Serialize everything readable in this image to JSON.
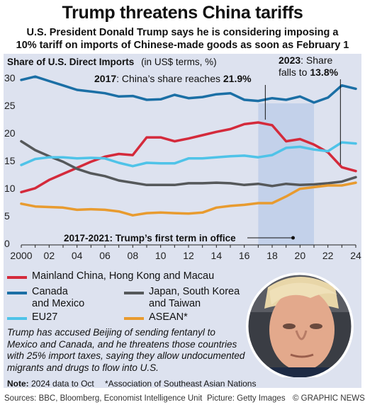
{
  "header": {
    "title": "Trump threatens China tariffs",
    "subtitle_line1": "U.S. President Donald Trump says he is considering imposing a",
    "subtitle_line2": "10% tariff on imports of Chinese-made goods as soon as February 1"
  },
  "chart_data": {
    "type": "line",
    "title": "Share of U.S. Direct Imports",
    "units": "(in US$ terms, %)",
    "x": [
      2000,
      2001,
      2002,
      2003,
      2004,
      2005,
      2006,
      2007,
      2008,
      2009,
      2010,
      2011,
      2012,
      2013,
      2014,
      2015,
      2016,
      2017,
      2018,
      2019,
      2020,
      2021,
      2022,
      2023,
      2024
    ],
    "x_tick_labels": [
      "2000",
      "02",
      "04",
      "06",
      "08",
      "10",
      "12",
      "14",
      "16",
      "18",
      "20",
      "22",
      "24"
    ],
    "y_ticks": [
      0,
      5,
      10,
      15,
      20,
      25,
      30
    ],
    "ylim": [
      0,
      31
    ],
    "grid": false,
    "series": [
      {
        "name": "Mainland China, Hong Kong and Macau",
        "color": "#d42a3b",
        "values": [
          9.3,
          10.0,
          11.5,
          12.6,
          13.7,
          14.8,
          15.7,
          16.2,
          16.0,
          19.2,
          19.2,
          18.5,
          19.0,
          19.6,
          20.2,
          20.7,
          21.6,
          21.9,
          21.4,
          18.5,
          18.9,
          17.9,
          16.5,
          13.8,
          13.1
        ]
      },
      {
        "name": "Canada and Mexico",
        "color": "#1b6fa5",
        "values": [
          29.6,
          30.2,
          29.4,
          28.6,
          27.8,
          27.5,
          27.2,
          26.6,
          26.7,
          26.0,
          26.1,
          26.9,
          26.3,
          26.5,
          27.0,
          27.2,
          26.0,
          25.8,
          26.3,
          26.0,
          26.6,
          25.5,
          26.4,
          28.6,
          28.0
        ]
      },
      {
        "name": "Japan, South Korea and Taiwan",
        "color": "#55585a",
        "values": [
          18.5,
          16.9,
          15.8,
          14.8,
          13.5,
          12.7,
          12.2,
          11.4,
          11.0,
          10.6,
          10.6,
          10.6,
          10.9,
          10.9,
          11.0,
          10.9,
          10.6,
          10.8,
          10.4,
          10.8,
          10.6,
          10.7,
          10.9,
          11.2,
          12.0
        ]
      },
      {
        "name": "EU27",
        "color": "#4fc3e8",
        "values": [
          14.2,
          15.3,
          15.6,
          15.6,
          15.4,
          15.5,
          15.4,
          14.6,
          14.0,
          14.6,
          14.5,
          14.5,
          15.4,
          15.4,
          15.6,
          15.8,
          15.9,
          15.6,
          16.0,
          17.3,
          17.5,
          17.0,
          16.7,
          18.3,
          18.1
        ]
      },
      {
        "name": "ASEAN*",
        "color": "#e89b2f",
        "values": [
          7.2,
          6.7,
          6.6,
          6.5,
          6.1,
          6.2,
          6.1,
          5.8,
          5.1,
          5.5,
          5.6,
          5.5,
          5.4,
          5.6,
          6.5,
          6.8,
          7.0,
          7.3,
          7.3,
          8.5,
          9.9,
          10.2,
          10.5,
          10.5,
          11.0
        ]
      }
    ],
    "annotations": {
      "a2017_prefix": "2017",
      "a2017_text": ": China’s share reaches ",
      "a2017_value": "21.9%",
      "a2023_prefix": "2023",
      "a2023_text": ": Share",
      "a2023_line2": "falls to ",
      "a2023_value": "13.8%",
      "term": "2017-2021: Trump’s first term in office"
    },
    "shaded_range": [
      2017,
      2021
    ]
  },
  "legend": {
    "items": [
      {
        "label_line1": "Mainland China, Hong Kong and Macau",
        "label_line2": "",
        "color": "#d42a3b"
      },
      {
        "label_line1": "Canada",
        "label_line2": "and Mexico",
        "color": "#1b6fa5"
      },
      {
        "label_line1": "Japan, South Korea",
        "label_line2": "and Taiwan",
        "color": "#55585a"
      },
      {
        "label_line1": "EU27",
        "label_line2": "",
        "color": "#4fc3e8"
      },
      {
        "label_line1": "ASEAN*",
        "label_line2": "",
        "color": "#e89b2f"
      }
    ]
  },
  "footnote": {
    "text": "Trump has accused Beijing of sending fentanyl to Mexico and Canada, and he threatens those countries with 25% import taxes, saying they allow undocumented migrants and drugs to flow into U.S."
  },
  "notes": {
    "note_label": "Note:",
    "note_text": " 2024 data to Oct",
    "asterisk": "*Association of Southeast Asian Nations",
    "sources": "Sources: BBC, Bloomberg, Economist Intelligence Unit",
    "picture": "Picture: Getty Images",
    "credit": "© GRAPHIC NEWS"
  },
  "colors": {
    "panel_bg": "#dde2ef",
    "shade": "#c3d1ea"
  }
}
